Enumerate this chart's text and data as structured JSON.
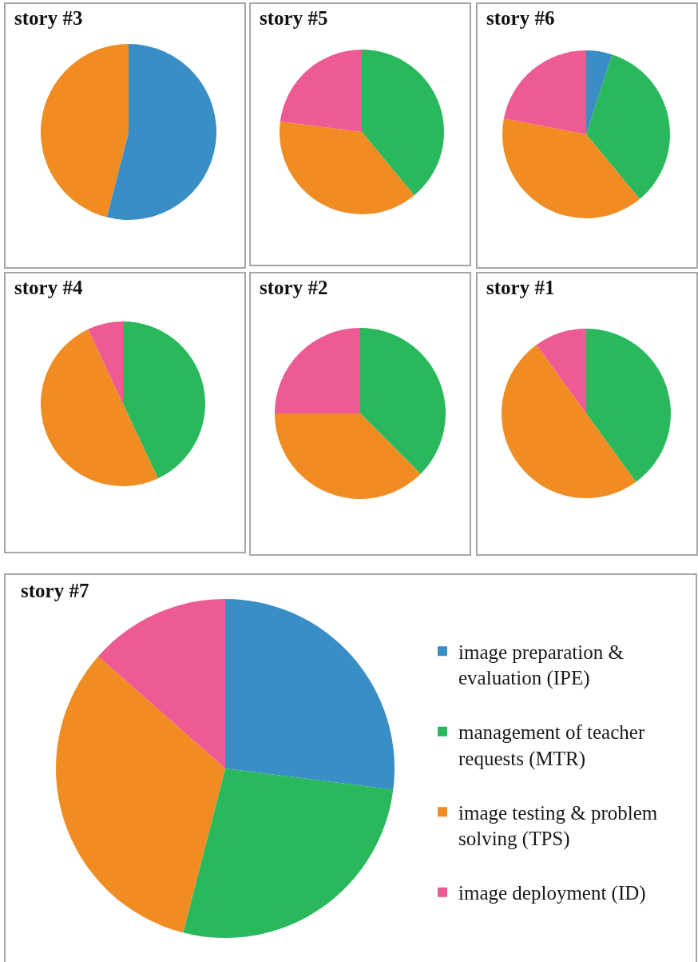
{
  "chart_data": [
    {
      "type": "pie",
      "title": "story #3",
      "categories": [
        null,
        null
      ],
      "values": [
        54,
        46
      ],
      "colors": [
        "#3a8ec6",
        "#f18c22"
      ]
    },
    {
      "type": "pie",
      "title": "story #5",
      "categories": [
        null,
        null,
        null
      ],
      "values": [
        39,
        38,
        23
      ],
      "colors": [
        "#29b85b",
        "#f18c22",
        "#ee5a93"
      ]
    },
    {
      "type": "pie",
      "title": "story #6",
      "categories": [
        null,
        null,
        null,
        null
      ],
      "values": [
        5,
        34,
        39,
        22
      ],
      "colors": [
        "#3a8ec6",
        "#29b85b",
        "#f18c22",
        "#ee5a93"
      ]
    },
    {
      "type": "pie",
      "title": "story #4",
      "categories": [
        null,
        null,
        null
      ],
      "values": [
        43,
        50,
        7
      ],
      "colors": [
        "#29b85b",
        "#f18c22",
        "#ee5a93"
      ]
    },
    {
      "type": "pie",
      "title": "story #2",
      "categories": [
        null,
        null,
        null
      ],
      "values": [
        37.5,
        37.5,
        25
      ],
      "colors": [
        "#29b85b",
        "#f18c22",
        "#ee5a93"
      ]
    },
    {
      "type": "pie",
      "title": "story #1",
      "categories": [
        null,
        null,
        null
      ],
      "values": [
        40,
        50,
        10
      ],
      "colors": [
        "#29b85b",
        "#f18c22",
        "#ee5a93"
      ]
    },
    {
      "type": "pie",
      "title": "story #7",
      "categories": [
        "image preparation & evaluation (IPE)",
        "management of teacher requests (MTR)",
        "image testing & problem solving (TPS)",
        "image deployment (ID)"
      ],
      "values": [
        27,
        27,
        32.5,
        13.5
      ],
      "colors": [
        "#3a8ec6",
        "#29b85b",
        "#f18c22",
        "#ee5a93"
      ],
      "legend": "right"
    }
  ]
}
